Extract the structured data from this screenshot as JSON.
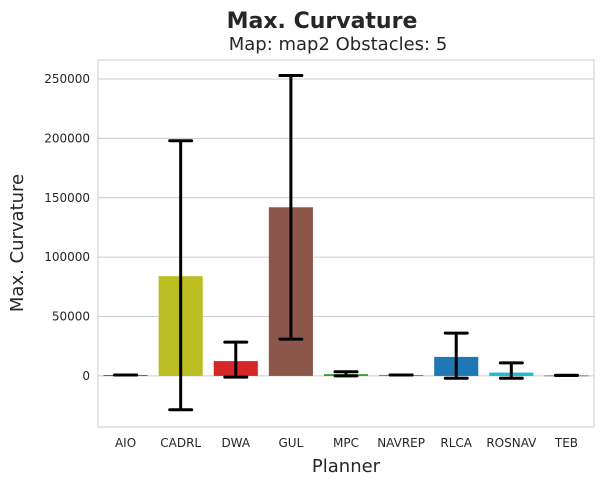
{
  "chart_data": {
    "type": "bar",
    "title": "Max. Curvature",
    "subtitle": "Map: map2 Obstacles: 5",
    "xlabel": "Planner",
    "ylabel": "Max. Curvature",
    "ylim": [
      -43000,
      266000
    ],
    "yticks": [
      0,
      50000,
      100000,
      150000,
      200000,
      250000
    ],
    "grid": true,
    "categories": [
      "AIO",
      "CADRL",
      "DWA",
      "GUL",
      "MPC",
      "NAVREP",
      "RLCA",
      "ROSNAV",
      "TEB"
    ],
    "values": [
      800,
      84000,
      12500,
      142000,
      1500,
      800,
      16000,
      2800,
      500
    ],
    "error_low": [
      800,
      -28500,
      -1000,
      31000,
      0,
      800,
      -2000,
      -2000,
      500
    ],
    "error_high": [
      800,
      198000,
      28500,
      253000,
      3500,
      800,
      36000,
      11000,
      500
    ],
    "colors": [
      "#1f77b4",
      "#bcbd22",
      "#d62728",
      "#8c564b",
      "#2ca02c",
      "#9467bd",
      "#1f77b4",
      "#17becf",
      "#7f7f7f"
    ]
  }
}
